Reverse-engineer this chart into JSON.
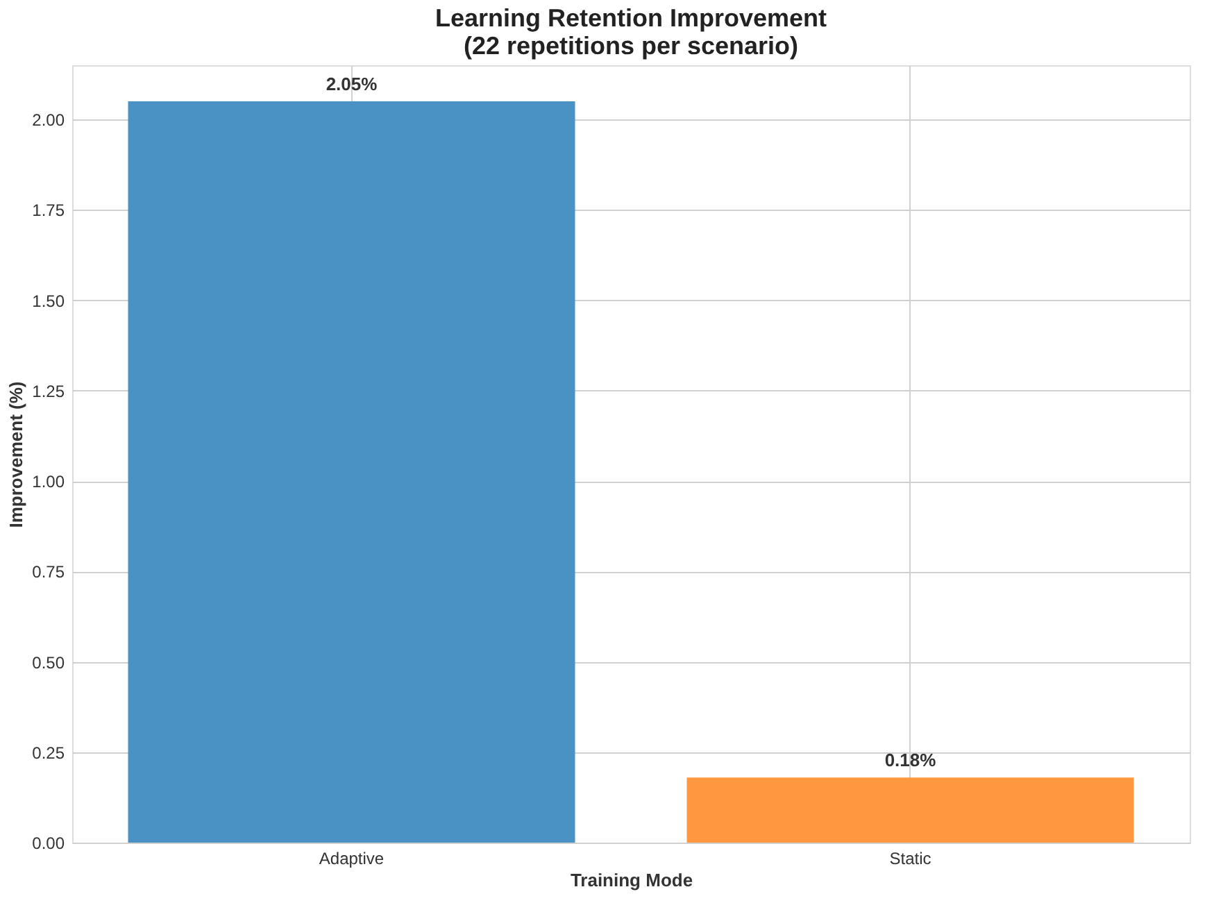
{
  "chart_data": {
    "type": "bar",
    "title": "Learning Retention Improvement\n(22 repetitions per scenario)",
    "xlabel": "Training Mode",
    "ylabel": "Improvement (%)",
    "categories": [
      "Adaptive",
      "Static"
    ],
    "values": [
      2.05,
      0.18
    ],
    "colors": [
      "#4a91c4",
      "#fd9840"
    ],
    "value_labels": [
      "2.05%",
      "0.18%"
    ],
    "ylim": [
      0,
      2.15
    ],
    "yticks": [
      {
        "value": 0,
        "label": "0.00"
      },
      0.25,
      {
        "value": 0.5,
        "label": "0.50"
      },
      0.75,
      {
        "value": 1,
        "label": "1.00"
      },
      1.25,
      {
        "value": 1.5,
        "label": "1.50"
      },
      1.75,
      {
        "value": 2,
        "label": "2.00"
      }
    ],
    "grid": true,
    "legend": false
  }
}
